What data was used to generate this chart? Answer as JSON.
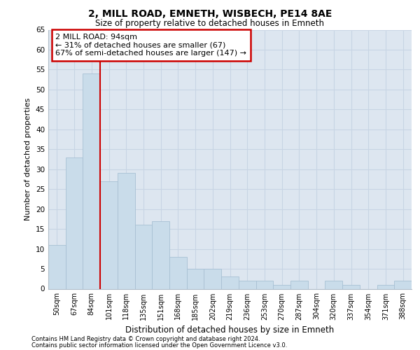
{
  "title1": "2, MILL ROAD, EMNETH, WISBECH, PE14 8AE",
  "title2": "Size of property relative to detached houses in Emneth",
  "xlabel": "Distribution of detached houses by size in Emneth",
  "ylabel": "Number of detached properties",
  "categories": [
    "50sqm",
    "67sqm",
    "84sqm",
    "101sqm",
    "118sqm",
    "135sqm",
    "151sqm",
    "168sqm",
    "185sqm",
    "202sqm",
    "219sqm",
    "236sqm",
    "253sqm",
    "270sqm",
    "287sqm",
    "304sqm",
    "320sqm",
    "337sqm",
    "354sqm",
    "371sqm",
    "388sqm"
  ],
  "values": [
    11,
    33,
    54,
    27,
    29,
    16,
    17,
    8,
    5,
    5,
    3,
    2,
    2,
    1,
    2,
    0,
    2,
    1,
    0,
    1,
    2
  ],
  "bar_color": "#c9dcea",
  "bar_edge_color": "#a8c0d4",
  "vline_x": 2.5,
  "vline_color": "#cc0000",
  "annotation_text": "2 MILL ROAD: 94sqm\n← 31% of detached houses are smaller (67)\n67% of semi-detached houses are larger (147) →",
  "annotation_box_edge": "#cc0000",
  "ylim": [
    0,
    65
  ],
  "yticks": [
    0,
    5,
    10,
    15,
    20,
    25,
    30,
    35,
    40,
    45,
    50,
    55,
    60,
    65
  ],
  "grid_color": "#c8d4e4",
  "background_color": "#dde6f0",
  "fig_background": "#ffffff",
  "footer_line1": "Contains HM Land Registry data © Crown copyright and database right 2024.",
  "footer_line2": "Contains public sector information licensed under the Open Government Licence v3.0."
}
